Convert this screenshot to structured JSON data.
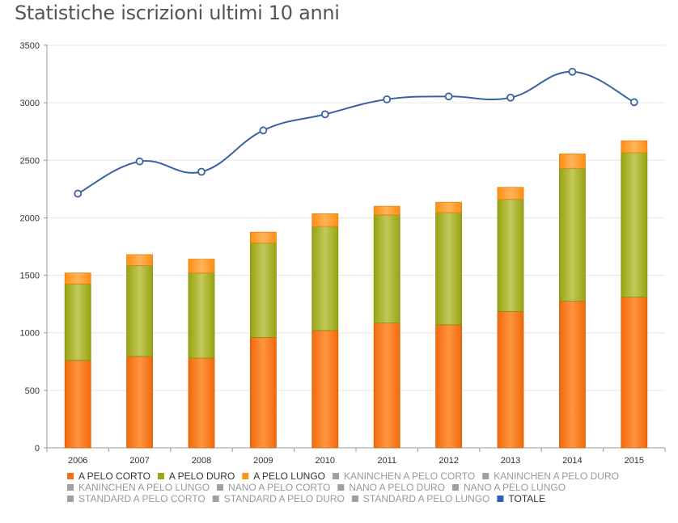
{
  "page": {
    "title": "Statistiche iscrizioni ultimi 10 anni"
  },
  "chart_data": {
    "type": "bar",
    "stacked": true,
    "categories": [
      "2006",
      "2007",
      "2008",
      "2009",
      "2010",
      "2011",
      "2012",
      "2013",
      "2014",
      "2015"
    ],
    "ylim": [
      0,
      3500
    ],
    "yticks": [
      "0",
      "500",
      "1000",
      "1500",
      "2000",
      "2500",
      "3000",
      "3500"
    ],
    "grid": true,
    "legend_position": "bottom",
    "series": [
      {
        "name": "A PELO CORTO",
        "type": "bar",
        "color": "#ff7f0e",
        "values": [
          760,
          795,
          780,
          960,
          1020,
          1085,
          1070,
          1185,
          1275,
          1310
        ]
      },
      {
        "name": "A PELO DURO",
        "type": "bar",
        "color": "#a2ad1a",
        "values": [
          665,
          790,
          740,
          820,
          905,
          940,
          975,
          975,
          1155,
          1255
        ]
      },
      {
        "name": "A PELO LUNGO",
        "type": "bar",
        "color": "#ff9a1c",
        "values": [
          95,
          95,
          120,
          95,
          110,
          75,
          90,
          105,
          125,
          105
        ]
      },
      {
        "name": "TOTALE",
        "type": "line",
        "color": "#3a62a3",
        "values": [
          2210,
          2490,
          2400,
          2760,
          2900,
          3030,
          3055,
          3045,
          3270,
          3005
        ]
      }
    ],
    "legend": [
      {
        "name": "A PELO CORTO",
        "color": "#f26e10",
        "active": true
      },
      {
        "name": "A PELO DURO",
        "color": "#9aa516",
        "active": true
      },
      {
        "name": "A PELO LUNGO",
        "color": "#ff931a",
        "active": true
      },
      {
        "name": "KANINCHEN A PELO CORTO",
        "color": "#a0a0a0",
        "active": false
      },
      {
        "name": "KANINCHEN A PELO DURO",
        "color": "#a0a0a0",
        "active": false
      },
      {
        "name": "KANINCHEN A PELO LUNGO",
        "color": "#a0a0a0",
        "active": false
      },
      {
        "name": "NANO A PELO CORTO",
        "color": "#a0a0a0",
        "active": false
      },
      {
        "name": "NANO A PELO DURO",
        "color": "#a0a0a0",
        "active": false
      },
      {
        "name": "NANO A PELO LUNGO",
        "color": "#a0a0a0",
        "active": false
      },
      {
        "name": "STANDARD A PELO CORTO",
        "color": "#a0a0a0",
        "active": false
      },
      {
        "name": "STANDARD A PELO DURO",
        "color": "#a0a0a0",
        "active": false
      },
      {
        "name": "STANDARD A PELO LUNGO",
        "color": "#a0a0a0",
        "active": false
      },
      {
        "name": "TOTALE",
        "color": "#2f5fb3",
        "active": true
      }
    ]
  }
}
